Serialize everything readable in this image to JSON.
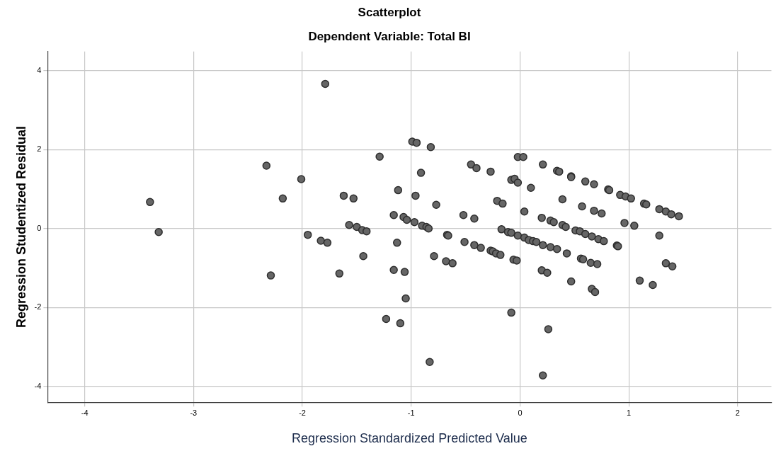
{
  "chart_data": {
    "type": "scatter",
    "title": "Scatterplot",
    "subtitle": "Dependent Variable: Total BI",
    "xlabel": "Regression Standardized Predicted Value",
    "ylabel": "Regression Studentized Residual",
    "xlim": [
      -4.34,
      2.31
    ],
    "ylim": [
      -4.4,
      4.48
    ],
    "xticks": [
      -4,
      -3,
      -2,
      -1,
      0,
      1,
      2
    ],
    "yticks": [
      -4,
      -2,
      0,
      2,
      4
    ],
    "grid": true,
    "marker": "circle",
    "legend": false,
    "series": [
      {
        "color": "#666666",
        "x": [
          -3.4,
          -3.32,
          -1.79,
          -2.33,
          -2.18,
          -2.01,
          -2.29,
          -1.95,
          -1.83,
          -1.77,
          -1.66,
          -1.29,
          -1.62,
          -1.53,
          -1.57,
          -1.5,
          -1.45,
          -1.41,
          -1.44,
          -1.12,
          -1.16,
          -1.07,
          -1.04,
          -1.13,
          -1.16,
          -1.06,
          -1.05,
          -1.23,
          -1.1,
          -0.99,
          -0.95,
          -0.82,
          -0.91,
          -0.45,
          -0.4,
          -0.27,
          -0.02,
          0.03,
          0.21,
          -0.08,
          -0.05,
          -0.02,
          0.1,
          -0.96,
          -0.77,
          -0.21,
          -0.16,
          0.04,
          0.2,
          -0.97,
          -0.9,
          -0.86,
          -0.84,
          -0.52,
          -0.42,
          -0.67,
          -0.66,
          -0.51,
          -0.42,
          -0.36,
          -0.27,
          -0.25,
          -0.22,
          -0.18,
          -0.17,
          -0.11,
          -0.08,
          -0.02,
          0.04,
          0.08,
          0.12,
          0.15,
          0.21,
          -0.79,
          -0.68,
          -0.62,
          -0.06,
          -0.03,
          0.2,
          -0.08,
          -0.83,
          0.21,
          0.26,
          0.34,
          0.36,
          0.47,
          0.47,
          0.6,
          0.68,
          0.81,
          0.82,
          0.92,
          0.97,
          1.02,
          1.14,
          1.16,
          1.28,
          1.34,
          1.39,
          1.46,
          0.39,
          0.57,
          0.68,
          0.75,
          0.96,
          1.05,
          0.28,
          0.31,
          0.39,
          0.42,
          0.51,
          0.55,
          0.6,
          0.66,
          0.72,
          0.77,
          0.89,
          0.9,
          1.28,
          0.28,
          0.34,
          0.43,
          0.56,
          0.58,
          0.65,
          0.71,
          1.34,
          1.4,
          0.25,
          0.47,
          1.1,
          1.22,
          0.66,
          0.69
        ],
        "values": [
          0.67,
          -0.09,
          3.66,
          1.59,
          0.76,
          1.25,
          -1.19,
          -0.16,
          -0.31,
          -0.36,
          -1.14,
          1.82,
          0.83,
          0.76,
          0.09,
          0.04,
          -0.04,
          -0.07,
          -0.7,
          0.97,
          0.34,
          0.29,
          0.22,
          -0.36,
          -1.05,
          -1.1,
          -1.77,
          -2.29,
          -2.4,
          2.2,
          2.17,
          2.06,
          1.41,
          1.62,
          1.53,
          1.44,
          1.81,
          1.81,
          1.62,
          1.23,
          1.26,
          1.16,
          1.03,
          0.83,
          0.6,
          0.7,
          0.63,
          0.43,
          0.27,
          0.16,
          0.07,
          0.04,
          0.0,
          0.34,
          0.25,
          -0.16,
          -0.18,
          -0.34,
          -0.42,
          -0.49,
          -0.56,
          -0.58,
          -0.63,
          -0.67,
          -0.02,
          -0.09,
          -0.11,
          -0.18,
          -0.23,
          -0.29,
          -0.32,
          -0.34,
          -0.42,
          -0.7,
          -0.83,
          -0.88,
          -0.79,
          -0.81,
          -1.06,
          -2.13,
          -3.38,
          -3.72,
          -2.55,
          1.46,
          1.44,
          1.32,
          1.3,
          1.19,
          1.12,
          0.99,
          0.97,
          0.85,
          0.81,
          0.76,
          0.63,
          0.61,
          0.49,
          0.43,
          0.36,
          0.31,
          0.74,
          0.56,
          0.45,
          0.38,
          0.14,
          0.07,
          0.2,
          0.16,
          0.09,
          0.04,
          -0.05,
          -0.07,
          -0.14,
          -0.2,
          -0.27,
          -0.32,
          -0.43,
          -0.45,
          -0.18,
          -0.47,
          -0.52,
          -0.63,
          -0.76,
          -0.78,
          -0.87,
          -0.9,
          -0.88,
          -0.96,
          -1.12,
          -1.34,
          -1.32,
          -1.43,
          -1.53,
          -1.61
        ]
      }
    ]
  }
}
